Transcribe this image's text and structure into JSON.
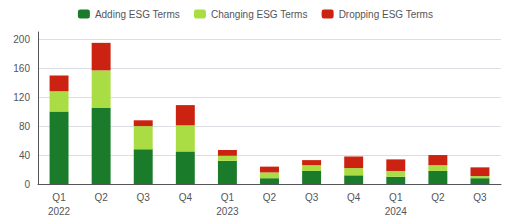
{
  "chart_data": {
    "type": "bar",
    "stacked": true,
    "categories": [
      "Q1",
      "Q2",
      "Q3",
      "Q4",
      "Q1",
      "Q2",
      "Q3",
      "Q4",
      "Q1",
      "Q2",
      "Q3"
    ],
    "series": [
      {
        "name": "Adding ESG Terms",
        "color": "#1a7c2a",
        "values": [
          100,
          105,
          48,
          45,
          32,
          8,
          18,
          12,
          10,
          18,
          8
        ]
      },
      {
        "name": "Changing ESG Terms",
        "color": "#aadd44",
        "values": [
          28,
          52,
          32,
          36,
          7,
          8,
          8,
          10,
          8,
          8,
          3
        ]
      },
      {
        "name": "Dropping ESG Terms",
        "color": "#cc2211",
        "values": [
          22,
          38,
          8,
          28,
          8,
          8,
          7,
          16,
          16,
          14,
          12
        ]
      }
    ],
    "annotations": [
      {
        "text": "2022",
        "at": 0
      },
      {
        "text": "2023",
        "at": 4
      },
      {
        "text": "2024",
        "at": 8
      }
    ],
    "ylim": [
      0,
      210
    ],
    "yticks": [
      0,
      40,
      80,
      120,
      160,
      200
    ],
    "grid": true,
    "legend": "top"
  }
}
